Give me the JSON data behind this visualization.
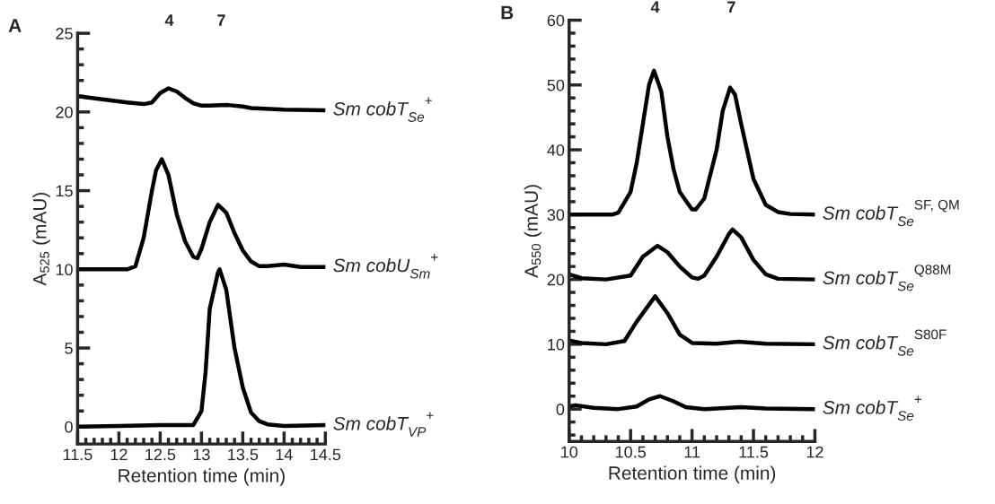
{
  "chart_data": [
    {
      "type": "line",
      "title": "A",
      "xlabel": "Retention time (min)",
      "ylabel": "A$_{525}$ (mAU)",
      "xlim": [
        11.5,
        14.5
      ],
      "ylim": [
        -1.1,
        25
      ],
      "xticks": [
        11.5,
        {
          "value": 11.6,
          "label": null
        },
        {
          "value": 11.7,
          "label": null
        },
        {
          "value": 11.8,
          "label": null
        },
        {
          "value": 11.9,
          "label": null
        },
        12,
        {
          "value": 12.1,
          "label": null
        },
        {
          "value": 12.2,
          "label": null
        },
        {
          "value": 12.3,
          "label": null
        },
        {
          "value": 12.4,
          "label": null
        },
        12.5,
        {
          "value": 12.6,
          "label": null
        },
        {
          "value": 12.7,
          "label": null
        },
        {
          "value": 12.8,
          "label": null
        },
        {
          "value": 12.9,
          "label": null
        },
        13,
        {
          "value": 13.1,
          "label": null
        },
        {
          "value": 13.2,
          "label": null
        },
        {
          "value": 13.3,
          "label": null
        },
        {
          "value": 13.4,
          "label": null
        },
        13.5,
        {
          "value": 13.6,
          "label": null
        },
        {
          "value": 13.7,
          "label": null
        },
        {
          "value": 13.8,
          "label": null
        },
        {
          "value": 13.9,
          "label": null
        },
        14,
        {
          "value": 14.1,
          "label": null
        },
        {
          "value": 14.2,
          "label": null
        },
        {
          "value": 14.3,
          "label": null
        },
        {
          "value": 14.4,
          "label": null
        },
        14.5
      ],
      "yticks": [
        0,
        {
          "value": 1,
          "label": null
        },
        {
          "value": 2,
          "label": null
        },
        {
          "value": 3,
          "label": null
        },
        {
          "value": 4,
          "label": null
        },
        5,
        {
          "value": 6,
          "label": null
        },
        {
          "value": 7,
          "label": null
        },
        {
          "value": 8,
          "label": null
        },
        {
          "value": 9,
          "label": null
        },
        10,
        {
          "value": 11,
          "label": null
        },
        {
          "value": 12,
          "label": null
        },
        {
          "value": 13,
          "label": null
        },
        {
          "value": 14,
          "label": null
        },
        15,
        {
          "value": 16,
          "label": null
        },
        {
          "value": 17,
          "label": null
        },
        {
          "value": 18,
          "label": null
        },
        {
          "value": 19,
          "label": null
        },
        20,
        {
          "value": 21,
          "label": null
        },
        {
          "value": 22,
          "label": null
        },
        {
          "value": 23,
          "label": null
        },
        {
          "value": 24,
          "label": null
        },
        25
      ],
      "annotations": [
        "4",
        "7"
      ],
      "series": [
        {
          "name": "Sm cobT$_{Se}$$^{+}$",
          "color": "#000000",
          "x": [
            11.5,
            11.8,
            12.1,
            12.3,
            12.4,
            12.5,
            12.6,
            12.7,
            12.8,
            12.9,
            13.0,
            13.1,
            13.3,
            13.5,
            13.6,
            14.0,
            14.5
          ],
          "values": [
            21.0,
            20.8,
            20.6,
            20.5,
            20.6,
            21.2,
            21.5,
            21.3,
            20.9,
            20.55,
            20.4,
            20.4,
            20.45,
            20.35,
            20.25,
            20.15,
            20.1
          ]
        },
        {
          "name": "Sm cobU$_{Sm}$$^{+}$",
          "color": "#000000",
          "x": [
            11.5,
            12.1,
            12.2,
            12.3,
            12.4,
            12.45,
            12.52,
            12.6,
            12.7,
            12.8,
            12.9,
            12.95,
            13.0,
            13.1,
            13.2,
            13.3,
            13.4,
            13.5,
            13.6,
            13.7,
            13.8,
            14.0,
            14.2,
            14.5
          ],
          "values": [
            10.0,
            10.0,
            10.2,
            12.0,
            15.0,
            16.3,
            17.0,
            16.0,
            13.5,
            11.8,
            10.8,
            10.7,
            11.3,
            13.0,
            14.1,
            13.6,
            12.3,
            11.2,
            10.5,
            10.2,
            10.2,
            10.3,
            10.15,
            10.15
          ]
        },
        {
          "name": "Sm cobT$_{VP}$$^{+}$",
          "color": "#000000",
          "x": [
            11.5,
            12.0,
            12.5,
            12.9,
            13.0,
            13.05,
            13.1,
            13.2,
            13.22,
            13.3,
            13.4,
            13.5,
            13.6,
            13.7,
            13.8,
            14.0,
            14.5
          ],
          "values": [
            0.0,
            0.05,
            0.1,
            0.1,
            1.0,
            3.5,
            7.5,
            9.8,
            10.0,
            8.7,
            5.0,
            2.5,
            0.9,
            0.35,
            0.15,
            0.05,
            0.1
          ]
        }
      ]
    },
    {
      "type": "line",
      "title": "B",
      "xlabel": "Retention time (min)",
      "ylabel": "A$_{550}$ (mAU)",
      "xlim": [
        10,
        12
      ],
      "ylim": [
        -5,
        60
      ],
      "xticks": [
        10,
        {
          "value": 10.1,
          "label": null
        },
        {
          "value": 10.2,
          "label": null
        },
        {
          "value": 10.3,
          "label": null
        },
        {
          "value": 10.4,
          "label": null
        },
        10.5,
        {
          "value": 10.6,
          "label": null
        },
        {
          "value": 10.7,
          "label": null
        },
        {
          "value": 10.8,
          "label": null
        },
        {
          "value": 10.9,
          "label": null
        },
        11,
        {
          "value": 11.1,
          "label": null
        },
        {
          "value": 11.2,
          "label": null
        },
        {
          "value": 11.3,
          "label": null
        },
        {
          "value": 11.4,
          "label": null
        },
        11.5,
        {
          "value": 11.6,
          "label": null
        },
        {
          "value": 11.7,
          "label": null
        },
        {
          "value": 11.8,
          "label": null
        },
        {
          "value": 11.9,
          "label": null
        },
        12
      ],
      "yticks": [
        {
          "value": -4,
          "label": null
        },
        {
          "value": -2,
          "label": null
        },
        0,
        {
          "value": 2,
          "label": null
        },
        {
          "value": 4,
          "label": null
        },
        {
          "value": 6,
          "label": null
        },
        {
          "value": 8,
          "label": null
        },
        10,
        {
          "value": 12,
          "label": null
        },
        {
          "value": 14,
          "label": null
        },
        {
          "value": 16,
          "label": null
        },
        {
          "value": 18,
          "label": null
        },
        20,
        {
          "value": 22,
          "label": null
        },
        {
          "value": 24,
          "label": null
        },
        {
          "value": 26,
          "label": null
        },
        {
          "value": 28,
          "label": null
        },
        30,
        {
          "value": 32,
          "label": null
        },
        {
          "value": 34,
          "label": null
        },
        {
          "value": 36,
          "label": null
        },
        {
          "value": 38,
          "label": null
        },
        40,
        {
          "value": 42,
          "label": null
        },
        {
          "value": 44,
          "label": null
        },
        {
          "value": 46,
          "label": null
        },
        {
          "value": 48,
          "label": null
        },
        50,
        {
          "value": 52,
          "label": null
        },
        {
          "value": 54,
          "label": null
        },
        {
          "value": 56,
          "label": null
        },
        {
          "value": 58,
          "label": null
        },
        60
      ],
      "annotations": [
        "4",
        "7"
      ],
      "series": [
        {
          "name": "Sm cobT$_{Se}$$^{SF, QM}$",
          "color": "#000000",
          "x": [
            10.0,
            10.35,
            10.4,
            10.5,
            10.55,
            10.6,
            10.65,
            10.69,
            10.75,
            10.8,
            10.85,
            10.9,
            11.0,
            11.03,
            11.1,
            11.2,
            11.25,
            11.31,
            11.35,
            11.4,
            11.5,
            11.6,
            11.7,
            11.8,
            12.0
          ],
          "values": [
            30,
            30,
            30.3,
            33.5,
            38,
            44,
            50,
            52.2,
            49,
            42,
            37,
            33.5,
            30.8,
            30.8,
            32.5,
            40,
            46,
            49.6,
            48.5,
            44,
            35.5,
            31.5,
            30.4,
            30.1,
            30
          ]
        },
        {
          "name": "Sm cobT$_{Se}$$^{Q88M}$",
          "color": "#000000",
          "x": [
            10.0,
            10.1,
            10.3,
            10.5,
            10.6,
            10.72,
            10.8,
            10.9,
            11.0,
            11.05,
            11.1,
            11.2,
            11.3,
            11.33,
            11.4,
            11.5,
            11.6,
            11.7,
            12.0
          ],
          "values": [
            20.8,
            20.2,
            20.0,
            20.6,
            23.5,
            25.2,
            24.2,
            22.0,
            20.3,
            20.1,
            20.6,
            23.5,
            27.0,
            27.7,
            26.5,
            23.0,
            20.8,
            20.1,
            20.0
          ]
        },
        {
          "name": "Sm cobT$_{Se}$$^{S80F}$",
          "color": "#000000",
          "x": [
            10.0,
            10.1,
            10.3,
            10.45,
            10.55,
            10.7,
            10.8,
            10.9,
            11.0,
            11.2,
            11.38,
            11.6,
            12.0
          ],
          "values": [
            10.6,
            10.2,
            10.0,
            10.5,
            13.5,
            17.4,
            14.8,
            11.5,
            10.2,
            10.1,
            10.4,
            10.1,
            10.0
          ]
        },
        {
          "name": "Sm cobT$_{Se}$$^{+}$",
          "color": "#000000",
          "x": [
            10.0,
            10.05,
            10.2,
            10.4,
            10.55,
            10.65,
            10.74,
            10.85,
            10.95,
            11.1,
            11.4,
            11.6,
            12.0
          ],
          "values": [
            0.4,
            0.6,
            0.2,
            0.0,
            0.4,
            1.5,
            2.0,
            1.2,
            0.3,
            0.0,
            0.3,
            0.1,
            0.0
          ]
        }
      ]
    }
  ]
}
